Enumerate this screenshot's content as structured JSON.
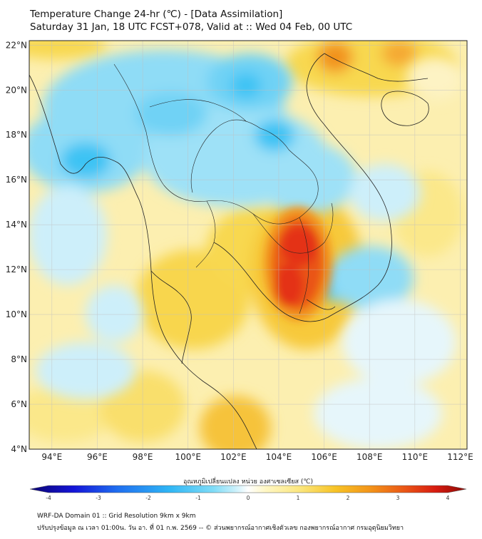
{
  "title": {
    "line1": "Temperature Change 24-hr (℃) - [Data Assimilation]",
    "line2": "Saturday 31 Jan, 18 UTC FCST+078, Valid at :: Wed 04 Feb, 00 UTC"
  },
  "axes": {
    "lat_labels": [
      "22°N",
      "20°N",
      "18°N",
      "16°N",
      "14°N",
      "12°N",
      "10°N",
      "8°N",
      "6°N",
      "4°N"
    ],
    "lon_labels": [
      "94°E",
      "96°E",
      "98°E",
      "100°E",
      "102°E",
      "104°E",
      "106°E",
      "108°E",
      "110°E",
      "112°E"
    ],
    "lat_range": [
      4,
      22.2
    ],
    "lon_range": [
      93,
      112.3
    ]
  },
  "colorbar": {
    "title": "อุณหภูมิเปลี่ยนแปลง หน่วย องศาเซลเซียส (℃)",
    "ticks": [
      "-4",
      "-3",
      "-2",
      "-1",
      "0",
      "1",
      "2",
      "3",
      "4"
    ],
    "range": [
      -4,
      4
    ],
    "colors": [
      "#0b0470",
      "#1414d8",
      "#1f6ef0",
      "#2fb6f5",
      "#7fdcf7",
      "#c9f0fb",
      "#ffffff",
      "#fff7c4",
      "#fbe67c",
      "#f7c326",
      "#f39419",
      "#ea5516",
      "#d71b10",
      "#8a0a05"
    ]
  },
  "fields": {
    "background": "#fcefb0",
    "cold_core": "#3ec3f4",
    "cold_mid": "#8fdcf6",
    "cold_light": "#cdeffa",
    "warm_light": "#fbe88a",
    "warm_mid": "#f7c93a",
    "warm_orange": "#f2931f",
    "hot": "#e43015"
  },
  "footer": {
    "line1": "WRF-DA Domain 01 :: Grid Resolution 9km x 9km",
    "line2": "ปรับปรุงข้อมูล ณ เวลา 01:00น. วัน อา. ที่ 01 ก.พ. 2569 -- © ส่วนพยากรณ์อากาศเชิงตัวเลข กองพยากรณ์อากาศ กรมอุตุนิยมวิทยา"
  }
}
